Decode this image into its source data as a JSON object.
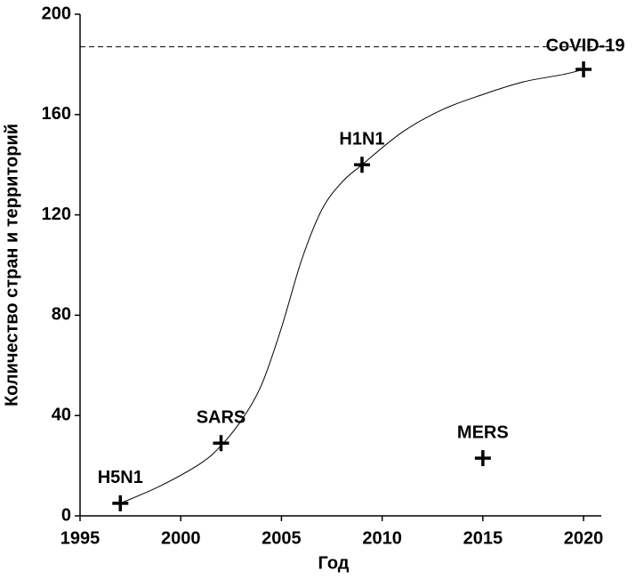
{
  "chart_data": {
    "type": "scatter",
    "xlabel": "Год",
    "ylabel": "Количество стран и территорий",
    "points": {
      "x": [
        1997,
        2002,
        2009,
        2015,
        2020
      ],
      "y": [
        5,
        29,
        140,
        23,
        178
      ],
      "labels": [
        "H5N1",
        "SARS",
        "H1N1",
        "MERS",
        "CoVID-19"
      ],
      "color": "#000000"
    },
    "curve": {
      "x": [
        1997,
        1999,
        2001,
        2002,
        2003,
        2004,
        2005,
        2006,
        2007,
        2008,
        2009,
        2011,
        2013,
        2015,
        2017,
        2019,
        2020
      ],
      "y": [
        5,
        12,
        21,
        28,
        38,
        52,
        75,
        102,
        122,
        133,
        140,
        153,
        162,
        168,
        173,
        176,
        178
      ],
      "color": "#000000"
    },
    "reference_line": 187,
    "xlim": [
      1995,
      2021.5
    ],
    "ylim": [
      0,
      200
    ],
    "xticks": [
      1995,
      2000,
      2005,
      2010,
      2015,
      2020
    ],
    "yticks": [
      0,
      40,
      80,
      120,
      160,
      200
    ]
  }
}
